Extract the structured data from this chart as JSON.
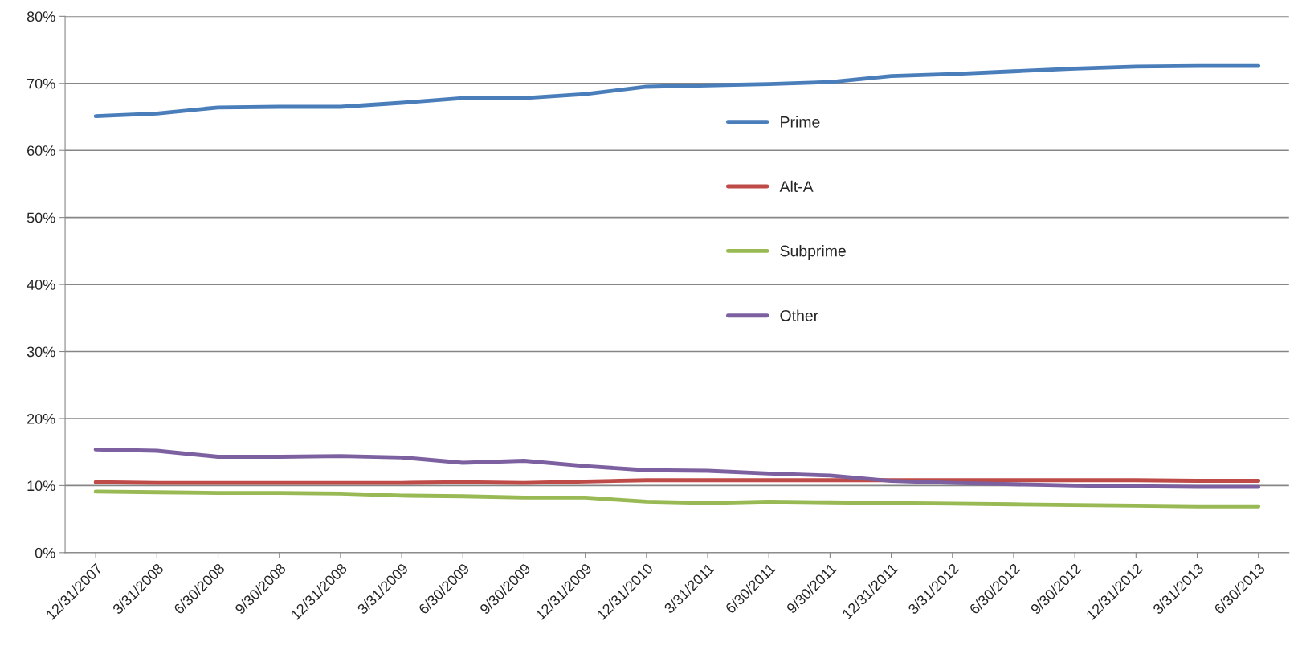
{
  "chart_data": {
    "type": "line",
    "categories": [
      "12/31/2007",
      "3/31/2008",
      "6/30/2008",
      "9/30/2008",
      "12/31/2008",
      "3/31/2009",
      "6/30/2009",
      "9/30/2009",
      "12/31/2009",
      "12/31/2010",
      "3/31/2011",
      "6/30/2011",
      "9/30/2011",
      "12/31/2011",
      "3/31/2012",
      "6/30/2012",
      "9/30/2012",
      "12/31/2012",
      "3/31/2013",
      "6/30/2013"
    ],
    "series": [
      {
        "name": "Prime",
        "color": "#4a7ebb",
        "values": [
          65.1,
          65.5,
          66.4,
          66.5,
          66.5,
          67.1,
          67.8,
          67.8,
          68.4,
          69.5,
          69.7,
          69.9,
          70.2,
          71.1,
          71.4,
          71.8,
          72.2,
          72.5,
          72.6,
          72.6
        ]
      },
      {
        "name": "Alt-A",
        "color": "#be4b48",
        "values": [
          10.5,
          10.4,
          10.4,
          10.4,
          10.4,
          10.4,
          10.5,
          10.4,
          10.6,
          10.8,
          10.8,
          10.8,
          10.8,
          10.8,
          10.8,
          10.8,
          10.8,
          10.8,
          10.7,
          10.7
        ]
      },
      {
        "name": "Subprime",
        "color": "#98b954",
        "values": [
          9.1,
          9.0,
          8.9,
          8.9,
          8.8,
          8.5,
          8.4,
          8.2,
          8.2,
          7.6,
          7.4,
          7.6,
          7.5,
          7.4,
          7.3,
          7.2,
          7.1,
          7.0,
          6.9,
          6.9
        ]
      },
      {
        "name": "Other",
        "color": "#7d60a0",
        "values": [
          15.4,
          15.2,
          14.3,
          14.3,
          14.4,
          14.2,
          13.4,
          13.7,
          12.9,
          12.3,
          12.2,
          11.8,
          11.5,
          10.7,
          10.4,
          10.2,
          10.0,
          9.9,
          9.8,
          9.8
        ]
      }
    ],
    "ylim": [
      0,
      80
    ],
    "yticks": [
      {
        "value": 0,
        "label": "0%"
      },
      {
        "value": 10,
        "label": "10%"
      },
      {
        "value": 20,
        "label": "20%"
      },
      {
        "value": 30,
        "label": "30%"
      },
      {
        "value": 40,
        "label": "40%"
      },
      {
        "value": 50,
        "label": "50%"
      },
      {
        "value": 60,
        "label": "60%"
      },
      {
        "value": 70,
        "label": "70%"
      },
      {
        "value": 80,
        "label": "80%"
      }
    ],
    "grid": "y",
    "legend": "center",
    "marker": "none",
    "line_style": "solid"
  }
}
